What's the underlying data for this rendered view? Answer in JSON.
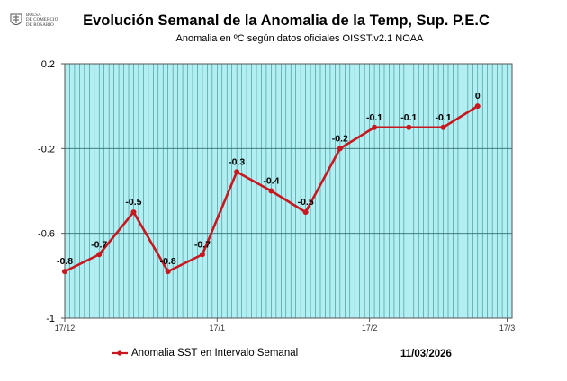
{
  "logo": {
    "line1": "Bolsa",
    "line2": "de Comercio",
    "line3": "de Rosario"
  },
  "chart_data": {
    "type": "line",
    "title": "Evolución Semanal  de la Anomalia de la Temp, Sup.  P.E.C",
    "subtitle": "Anomalia en ºC según datos oficiales OISST.v2.1 NOAA",
    "ylim": [
      -1,
      0.2
    ],
    "y_ticks": [
      0.2,
      -0.2,
      -0.6,
      -1
    ],
    "y_tick_labels": [
      "0.2",
      "-0.2",
      "-0.6",
      "-1"
    ],
    "x_range_days": [
      0,
      91
    ],
    "x_ticks": [
      {
        "day": 0,
        "label": "17/12"
      },
      {
        "day": 31,
        "label": "17/1"
      },
      {
        "day": 62,
        "label": "17/2"
      },
      {
        "day": 90,
        "label": "17/3"
      }
    ],
    "grid": true,
    "series": [
      {
        "name": "Anomalia SST en Intervalo Semanal",
        "color": "#c8171e",
        "x_days": [
          0,
          7,
          14,
          21,
          28,
          35,
          42,
          49,
          56,
          63,
          70,
          77,
          84
        ],
        "values": [
          -0.78,
          -0.7,
          -0.5,
          -0.78,
          -0.7,
          -0.31,
          -0.4,
          -0.5,
          -0.2,
          -0.1,
          -0.1,
          -0.1,
          0.0
        ],
        "data_labels": [
          "-0.8",
          "-0.7",
          "-0.5",
          "-0.8",
          "-0.7",
          "-0.3",
          "-0.4",
          "-0.5",
          "-0.2",
          "-0.1",
          "-0.1",
          "-0.1",
          "0"
        ]
      }
    ],
    "legend_position": "bottom-left"
  },
  "colors": {
    "plot_background": "#b2eff2",
    "grid_line": "#3b8c91",
    "line": "#c8171e"
  },
  "legend": {
    "label": "Anomalia SST en Intervalo Semanal"
  },
  "date": "11/03/2026"
}
